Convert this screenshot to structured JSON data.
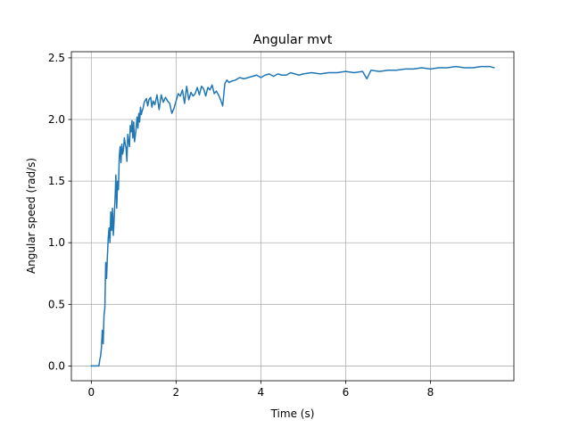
{
  "chart_data": {
    "type": "line",
    "title": "Angular mvt",
    "xlabel": "Time (s)",
    "ylabel": "Angular speed (rad/s)",
    "xlim": [
      -0.47,
      9.97
    ],
    "ylim": [
      -0.12,
      2.55
    ],
    "xticks": [
      0,
      2,
      4,
      6,
      8
    ],
    "xtick_labels": [
      "0",
      "2",
      "4",
      "6",
      "8"
    ],
    "yticks": [
      0.0,
      0.5,
      1.0,
      1.5,
      2.0,
      2.5
    ],
    "ytick_labels": [
      "0.0",
      "0.5",
      "1.0",
      "1.5",
      "2.0",
      "2.5"
    ],
    "grid": true,
    "series": [
      {
        "color": "#1f77b4",
        "x": [
          0.0,
          0.1,
          0.15,
          0.18,
          0.2,
          0.22,
          0.24,
          0.26,
          0.28,
          0.3,
          0.32,
          0.34,
          0.36,
          0.38,
          0.4,
          0.42,
          0.44,
          0.46,
          0.48,
          0.5,
          0.52,
          0.54,
          0.56,
          0.58,
          0.6,
          0.62,
          0.64,
          0.66,
          0.68,
          0.7,
          0.72,
          0.74,
          0.76,
          0.78,
          0.8,
          0.82,
          0.84,
          0.86,
          0.88,
          0.9,
          0.92,
          0.94,
          0.96,
          0.98,
          1.0,
          1.02,
          1.05,
          1.08,
          1.1,
          1.12,
          1.14,
          1.16,
          1.18,
          1.2,
          1.22,
          1.25,
          1.28,
          1.3,
          1.33,
          1.36,
          1.4,
          1.43,
          1.46,
          1.5,
          1.55,
          1.6,
          1.65,
          1.7,
          1.75,
          1.8,
          1.85,
          1.9,
          1.95,
          2.0,
          2.05,
          2.1,
          2.15,
          2.2,
          2.25,
          2.3,
          2.35,
          2.4,
          2.45,
          2.5,
          2.55,
          2.6,
          2.65,
          2.7,
          2.75,
          2.8,
          2.85,
          2.9,
          2.95,
          3.0,
          3.05,
          3.1,
          3.15,
          3.2,
          3.25,
          3.3,
          3.4,
          3.5,
          3.6,
          3.7,
          3.8,
          3.9,
          4.0,
          4.1,
          4.2,
          4.3,
          4.4,
          4.5,
          4.6,
          4.7,
          4.8,
          4.9,
          5.0,
          5.2,
          5.4,
          5.6,
          5.8,
          6.0,
          6.2,
          6.4,
          6.5,
          6.6,
          6.8,
          7.0,
          7.2,
          7.4,
          7.6,
          7.8,
          8.0,
          8.2,
          8.4,
          8.6,
          8.8,
          9.0,
          9.2,
          9.4,
          9.5
        ],
        "y": [
          0.0,
          0.0,
          0.0,
          0.0,
          0.05,
          0.08,
          0.15,
          0.29,
          0.18,
          0.41,
          0.47,
          0.84,
          0.71,
          0.89,
          1.04,
          1.12,
          1.0,
          1.25,
          1.1,
          1.28,
          1.06,
          1.2,
          1.35,
          1.55,
          1.28,
          1.5,
          1.43,
          1.7,
          1.78,
          1.65,
          1.8,
          1.72,
          1.76,
          1.85,
          1.8,
          1.77,
          1.66,
          1.88,
          1.82,
          1.78,
          1.95,
          1.9,
          1.99,
          1.85,
          1.98,
          1.82,
          1.9,
          2.02,
          1.93,
          2.05,
          1.98,
          2.1,
          2.04,
          2.07,
          2.09,
          2.14,
          2.16,
          2.17,
          2.11,
          2.16,
          2.18,
          2.1,
          2.15,
          2.12,
          2.2,
          2.08,
          2.2,
          2.14,
          2.18,
          2.15,
          2.13,
          2.05,
          2.09,
          2.15,
          2.21,
          2.19,
          2.24,
          2.13,
          2.27,
          2.16,
          2.22,
          2.19,
          2.21,
          2.26,
          2.2,
          2.27,
          2.25,
          2.19,
          2.26,
          2.24,
          2.28,
          2.21,
          2.23,
          2.2,
          2.16,
          2.11,
          2.29,
          2.32,
          2.3,
          2.31,
          2.32,
          2.34,
          2.33,
          2.34,
          2.35,
          2.36,
          2.34,
          2.36,
          2.37,
          2.35,
          2.37,
          2.36,
          2.36,
          2.38,
          2.37,
          2.36,
          2.37,
          2.38,
          2.37,
          2.38,
          2.38,
          2.39,
          2.38,
          2.39,
          2.33,
          2.4,
          2.39,
          2.4,
          2.4,
          2.41,
          2.41,
          2.42,
          2.41,
          2.42,
          2.42,
          2.43,
          2.42,
          2.42,
          2.43,
          2.43,
          2.42
        ]
      }
    ]
  }
}
